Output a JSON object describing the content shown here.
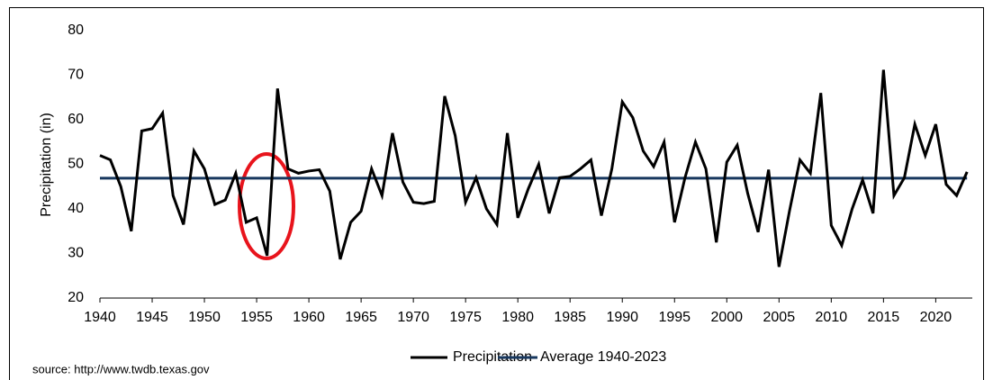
{
  "chart_data": {
    "type": "line",
    "y_label": "Precipitation (in)",
    "source": "source: http://www.twdb.texas.gov",
    "x": [
      1940,
      1941,
      1942,
      1943,
      1944,
      1945,
      1946,
      1947,
      1948,
      1949,
      1950,
      1951,
      1952,
      1953,
      1954,
      1955,
      1956,
      1957,
      1958,
      1959,
      1960,
      1961,
      1962,
      1963,
      1964,
      1965,
      1966,
      1967,
      1968,
      1969,
      1970,
      1971,
      1972,
      1973,
      1974,
      1975,
      1976,
      1977,
      1978,
      1979,
      1980,
      1981,
      1982,
      1983,
      1984,
      1985,
      1986,
      1987,
      1988,
      1989,
      1990,
      1991,
      1992,
      1993,
      1994,
      1995,
      1996,
      1997,
      1998,
      1999,
      2000,
      2001,
      2002,
      2003,
      2004,
      2005,
      2006,
      2007,
      2008,
      2009,
      2010,
      2011,
      2012,
      2013,
      2014,
      2015,
      2016,
      2017,
      2018,
      2019,
      2020,
      2021,
      2022,
      2023
    ],
    "series": [
      {
        "name": "Precipitation",
        "color": "#000000",
        "values": [
          52,
          51,
          45,
          35,
          57.5,
          58,
          61.5,
          43,
          36.5,
          53,
          49,
          41,
          42,
          48,
          37,
          38,
          29.5,
          67,
          49,
          48,
          48.5,
          48.8,
          44,
          28.7,
          37,
          39.5,
          49,
          43,
          57,
          46,
          41.5,
          41.2,
          41.7,
          65.3,
          56.5,
          41.5,
          47,
          40,
          36.5,
          57,
          38,
          44.5,
          50,
          39,
          47,
          47.3,
          49,
          51,
          38.5,
          49,
          64,
          60.5,
          53,
          49.5,
          55,
          37,
          47,
          55,
          49,
          32.5,
          50.5,
          54.3,
          43.5,
          34.8,
          48.8,
          27,
          39.5,
          51,
          48,
          66,
          36.3,
          31.8,
          40,
          46.5,
          39,
          71.2,
          43,
          47,
          59,
          52,
          59,
          45.5,
          43,
          48.3
        ]
      }
    ],
    "reference_line": {
      "name": "Average 1940-2023",
      "value": 46.9,
      "color": "#17375e"
    },
    "xlim": [
      1940,
      2023.5
    ],
    "xticks": [
      1940,
      1945,
      1950,
      1955,
      1960,
      1965,
      1970,
      1975,
      1980,
      1985,
      1990,
      1995,
      2000,
      2005,
      2010,
      2015,
      2020
    ],
    "ylim": [
      20,
      80
    ],
    "yticks": [
      20,
      30,
      40,
      50,
      60,
      70,
      80
    ]
  }
}
